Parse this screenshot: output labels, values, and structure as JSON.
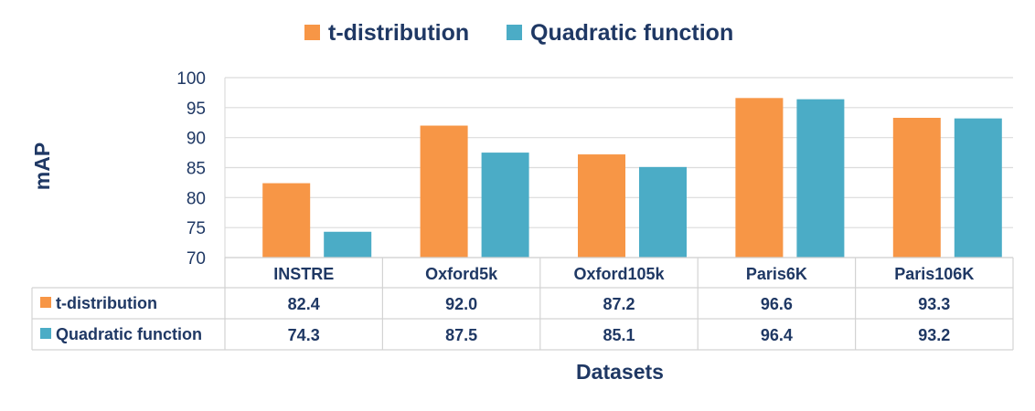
{
  "chart_data": {
    "type": "bar",
    "title": "",
    "xlabel": "Datasets",
    "ylabel": "mAP",
    "ylim": [
      70,
      100
    ],
    "yticks": [
      70,
      75,
      80,
      85,
      90,
      95,
      100
    ],
    "categories": [
      "INSTRE",
      "Oxford5k",
      "Oxford105k",
      "Paris6K",
      "Paris106K"
    ],
    "series": [
      {
        "name": "t-distribution",
        "color": "#f79646",
        "values": [
          82.4,
          92.0,
          87.2,
          96.6,
          93.3
        ],
        "labels": [
          "82.4",
          "92.0",
          "87.2",
          "96.6",
          "93.3"
        ]
      },
      {
        "name": "Quadratic function",
        "color": "#4bacc6",
        "values": [
          74.3,
          87.5,
          85.1,
          96.4,
          93.2
        ],
        "labels": [
          "74.3",
          "87.5",
          "85.1",
          "96.4",
          "93.2"
        ]
      }
    ],
    "legend_position": "top",
    "grid": true,
    "data_table": true
  }
}
